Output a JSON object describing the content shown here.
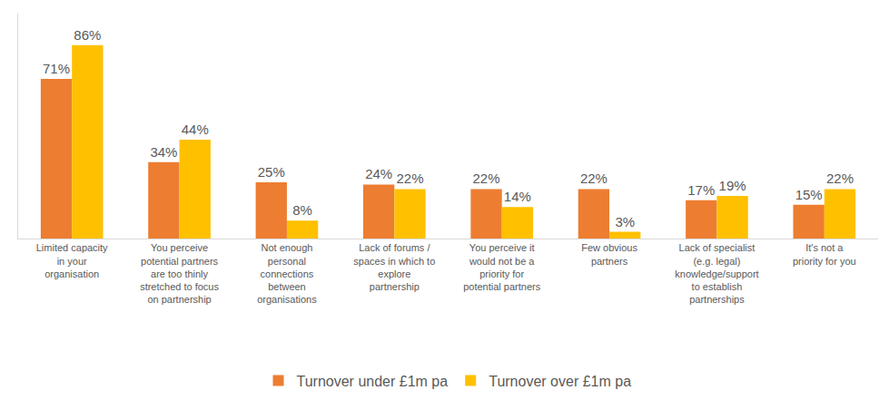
{
  "chart_data": {
    "type": "bar",
    "categories": [
      "Limited capacity in your organisation",
      "You perceive potential partners are too thinly stretched to focus on partnership",
      "Not enough personal connections between organisations",
      "Lack of forums / spaces in which to explore partnership",
      "You perceive it would not be a priority for potential partners",
      "Few obvious partners",
      "Lack of specialist (e.g. legal) knowledge/support to establish partnerships",
      "It's not a priority for you"
    ],
    "series": [
      {
        "name": "Turnover under £1m pa",
        "color": "#ED7D31",
        "values": [
          71,
          34,
          25,
          24,
          22,
          22,
          17,
          15
        ],
        "value_labels": [
          "71%",
          "34%",
          "25%",
          "24%",
          "22%",
          "22%",
          "17%",
          "15%"
        ]
      },
      {
        "name": "Turnover over £1m pa",
        "color": "#FFC000",
        "values": [
          86,
          44,
          8,
          22,
          14,
          3,
          19,
          22
        ],
        "value_labels": [
          "86%",
          "44%",
          "8%",
          "22%",
          "14%",
          "3%",
          "19%",
          "22%"
        ]
      }
    ],
    "ylim": [
      0,
      100
    ],
    "grid": false,
    "legend": "bottom",
    "data_labels": true,
    "tick_labels": "x"
  }
}
